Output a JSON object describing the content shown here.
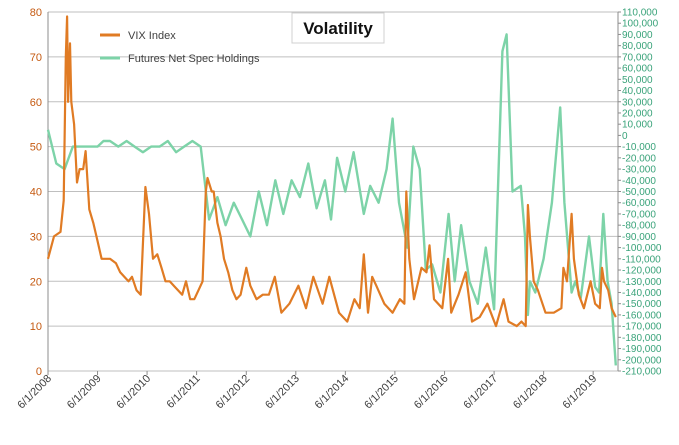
{
  "chart_data": {
    "type": "line",
    "title": "Volatility",
    "legend_position": "top-left",
    "grid": true,
    "colors": {
      "vix": "#e07b24",
      "futures": "#7dd3a8",
      "left_axis": "#c55a11",
      "right_axis": "#3aa37a",
      "grid": "#bfbfbf"
    },
    "x_ticks": [
      "6/1/2008",
      "6/1/2009",
      "6/1/2010",
      "6/1/2011",
      "6/1/2012",
      "6/1/2013",
      "6/1/2014",
      "6/1/2015",
      "6/1/2016",
      "6/1/2017",
      "6/1/2018",
      "6/1/2019"
    ],
    "y_left": {
      "min": 0,
      "max": 80,
      "step": 10,
      "ticks": [
        "0",
        "10",
        "20",
        "30",
        "40",
        "50",
        "60",
        "70",
        "80"
      ]
    },
    "y_right": {
      "min": -210000,
      "max": 110000,
      "step": 10000,
      "ticks": [
        "-210,000",
        "-200,000",
        "-190,000",
        "-180,000",
        "-170,000",
        "-160,000",
        "-150,000",
        "-140,000",
        "-130,000",
        "-120,000",
        "-110,000",
        "-100,000",
        "-90,000",
        "-80,000",
        "-70,000",
        "-60,000",
        "-50,000",
        "-40,000",
        "-30,000",
        "-20,000",
        "-10,000",
        "0",
        "10,000",
        "20,000",
        "30,000",
        "40,000",
        "50,000",
        "60,000",
        "70,000",
        "80,000",
        "90,000",
        "100,000",
        "110,000"
      ]
    },
    "series": [
      {
        "name": "VIX Index",
        "axis": "left",
        "x": [
          "2008-06-01",
          "2008-07-15",
          "2008-09-01",
          "2008-09-25",
          "2008-10-10",
          "2008-10-20",
          "2008-10-27",
          "2008-11-10",
          "2008-11-20",
          "2008-12-10",
          "2009-01-01",
          "2009-01-20",
          "2009-02-15",
          "2009-03-05",
          "2009-04-01",
          "2009-05-01",
          "2009-06-01",
          "2009-07-01",
          "2009-08-01",
          "2009-09-01",
          "2009-10-15",
          "2009-11-15",
          "2009-12-15",
          "2010-01-15",
          "2010-02-10",
          "2010-03-15",
          "2010-04-15",
          "2010-05-20",
          "2010-06-15",
          "2010-07-15",
          "2010-08-15",
          "2010-09-15",
          "2010-10-15",
          "2010-11-15",
          "2010-12-15",
          "2011-01-15",
          "2011-02-15",
          "2011-03-15",
          "2011-04-15",
          "2011-05-15",
          "2011-06-15",
          "2011-07-15",
          "2011-08-08",
          "2011-08-20",
          "2011-09-20",
          "2011-10-05",
          "2011-11-01",
          "2011-11-25",
          "2011-12-20",
          "2012-01-20",
          "2012-02-20",
          "2012-03-20",
          "2012-04-20",
          "2012-06-01",
          "2012-07-01",
          "2012-08-15",
          "2012-10-01",
          "2012-11-15",
          "2012-12-28",
          "2013-02-15",
          "2013-04-15",
          "2013-06-20",
          "2013-08-15",
          "2013-10-08",
          "2013-12-15",
          "2014-02-03",
          "2014-04-15",
          "2014-06-15",
          "2014-08-07",
          "2014-09-15",
          "2014-10-15",
          "2014-11-15",
          "2014-12-16",
          "2015-01-15",
          "2015-03-15",
          "2015-05-15",
          "2015-07-08",
          "2015-08-10",
          "2015-08-24",
          "2015-09-15",
          "2015-10-20",
          "2015-12-14",
          "2016-01-20",
          "2016-02-11",
          "2016-03-15",
          "2016-05-15",
          "2016-06-27",
          "2016-07-20",
          "2016-09-12",
          "2016-11-04",
          "2016-12-20",
          "2017-02-15",
          "2017-04-13",
          "2017-06-15",
          "2017-08-10",
          "2017-09-15",
          "2017-11-15",
          "2017-12-20",
          "2018-01-20",
          "2018-02-05",
          "2018-02-20",
          "2018-03-20",
          "2018-04-20",
          "2018-06-15",
          "2018-08-15",
          "2018-10-10",
          "2018-10-25",
          "2018-11-20",
          "2018-12-24",
          "2019-01-10",
          "2019-02-15",
          "2019-03-25",
          "2019-05-13",
          "2019-06-15",
          "2019-07-20",
          "2019-08-05",
          "2019-08-20",
          "2019-09-20",
          "2019-10-15",
          "2019-11-15"
        ],
        "y": [
          25,
          30,
          31,
          38,
          70,
          79,
          60,
          73,
          60,
          55,
          42,
          45,
          45,
          49,
          36,
          33,
          29,
          25,
          25,
          25,
          24,
          22,
          21,
          20,
          21,
          18,
          17,
          41,
          35,
          25,
          26,
          23,
          20,
          20,
          19,
          18,
          17,
          20,
          16,
          16,
          18,
          20,
          40,
          43,
          40,
          40,
          33,
          30,
          25,
          22,
          18,
          16,
          17,
          23,
          19,
          16,
          17,
          17,
          21,
          13,
          15,
          19,
          14,
          21,
          15,
          21,
          13,
          11,
          16,
          14,
          26,
          13,
          21,
          19,
          15,
          13,
          16,
          15,
          40,
          25,
          16,
          23,
          22,
          28,
          16,
          14,
          25,
          13,
          17,
          22,
          11,
          12,
          15,
          10,
          16,
          11,
          10,
          11,
          10,
          37,
          30,
          20,
          18,
          13,
          13,
          14,
          23,
          20,
          35,
          25,
          17,
          14,
          20,
          15,
          14,
          23,
          20,
          18,
          14,
          12
        ]
      },
      {
        "name": "Futures Net Spec Holdings",
        "axis": "right",
        "x": [
          "2008-06-01",
          "2008-08-01",
          "2008-10-01",
          "2008-12-01",
          "2009-03-01",
          "2009-06-01",
          "2009-07-15",
          "2009-09-01",
          "2009-11-01",
          "2010-01-01",
          "2010-03-01",
          "2010-05-01",
          "2010-07-01",
          "2010-09-01",
          "2010-11-01",
          "2011-01-01",
          "2011-03-01",
          "2011-05-01",
          "2011-07-01",
          "2011-09-01",
          "2011-11-01",
          "2012-01-01",
          "2012-03-01",
          "2012-05-01",
          "2012-07-01",
          "2012-09-01",
          "2012-11-01",
          "2013-01-01",
          "2013-03-01",
          "2013-05-01",
          "2013-07-01",
          "2013-09-01",
          "2013-11-01",
          "2014-01-01",
          "2014-02-15",
          "2014-04-01",
          "2014-06-01",
          "2014-08-01",
          "2014-10-15",
          "2014-12-01",
          "2015-02-01",
          "2015-04-01",
          "2015-05-15",
          "2015-07-01",
          "2015-09-01",
          "2015-10-15",
          "2015-12-01",
          "2016-01-15",
          "2016-03-01",
          "2016-05-01",
          "2016-07-01",
          "2016-08-15",
          "2016-10-01",
          "2016-12-01",
          "2017-02-01",
          "2017-04-01",
          "2017-06-01",
          "2017-08-01",
          "2017-09-01",
          "2017-10-15",
          "2017-12-15",
          "2018-01-15",
          "2018-02-05",
          "2018-02-20",
          "2018-04-01",
          "2018-06-01",
          "2018-08-01",
          "2018-10-01",
          "2018-11-01",
          "2018-12-24",
          "2019-01-20",
          "2019-03-01",
          "2019-05-01",
          "2019-06-15",
          "2019-07-15",
          "2019-08-15",
          "2019-09-15",
          "2019-10-15",
          "2019-11-15"
        ],
        "y": [
          5000,
          -25000,
          -30000,
          -10000,
          -10000,
          -10000,
          -5000,
          -5000,
          -10000,
          -5000,
          -10000,
          -15000,
          -10000,
          -10000,
          -5000,
          -15000,
          -10000,
          -5000,
          -10000,
          -75000,
          -55000,
          -80000,
          -60000,
          -75000,
          -90000,
          -50000,
          -80000,
          -40000,
          -70000,
          -40000,
          -55000,
          -25000,
          -65000,
          -40000,
          -75000,
          -20000,
          -50000,
          -15000,
          -70000,
          -45000,
          -60000,
          -30000,
          15000,
          -60000,
          -100000,
          -10000,
          -30000,
          -120000,
          -115000,
          -140000,
          -70000,
          -130000,
          -80000,
          -130000,
          -150000,
          -100000,
          -155000,
          75000,
          90000,
          -50000,
          -45000,
          -90000,
          -160000,
          -130000,
          -140000,
          -110000,
          -60000,
          25000,
          -60000,
          -140000,
          -130000,
          -145000,
          -90000,
          -135000,
          -140000,
          -70000,
          -130000,
          -150000,
          -205000
        ]
      }
    ]
  }
}
